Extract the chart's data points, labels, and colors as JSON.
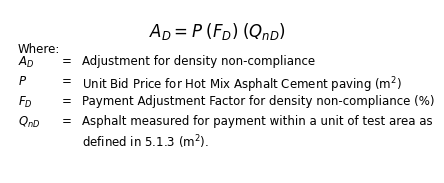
{
  "bg_color": "#ffffff",
  "formula": "$A_D = P\\;(F_D)\\;(Q_{nD})$",
  "where_label": "Where:",
  "rows": [
    {
      "symbol": "$A_D$",
      "eq": "=",
      "description": "Adjustment for density non-compliance"
    },
    {
      "symbol": "$P$",
      "eq": "=",
      "description": "Unit Bid Price for Hot Mix Asphalt Cement paving (m$^2$)"
    },
    {
      "symbol": "$F_D$",
      "eq": "=",
      "description": "Payment Adjustment Factor for density non-compliance (%)"
    },
    {
      "symbol": "$Q_{nD}$",
      "eq": "=",
      "description": "Asphalt measured for payment within a unit of test area as\ndefined in 5.1.3 (m$^2$)."
    }
  ],
  "formula_fontsize": 12,
  "text_fontsize": 8.5
}
